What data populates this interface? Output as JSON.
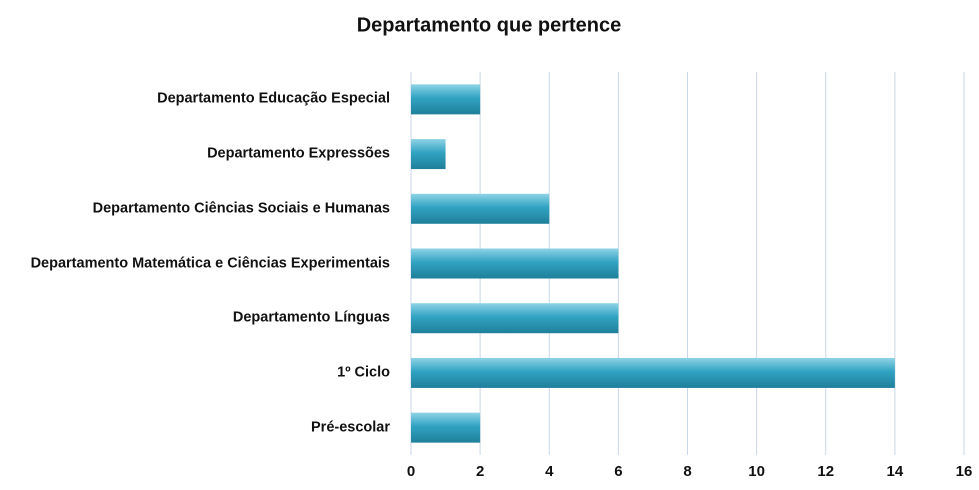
{
  "chart_data": {
    "type": "bar",
    "orientation": "horizontal",
    "title": "Departamento que pertence",
    "categories": [
      "Departamento Educação Especial",
      "Departamento Expressões",
      "Departamento Ciências Sociais e Humanas",
      "Departamento Matemática e Ciências Experimentais",
      "Departamento Línguas",
      "1º Ciclo",
      "Pré-escolar"
    ],
    "values": [
      2,
      1,
      4,
      6,
      6,
      14,
      2
    ],
    "color": "#31a3c2",
    "xlim": [
      0,
      16
    ],
    "xticks": [
      0,
      2,
      4,
      6,
      8,
      10,
      12,
      14,
      16
    ],
    "grid": true
  }
}
